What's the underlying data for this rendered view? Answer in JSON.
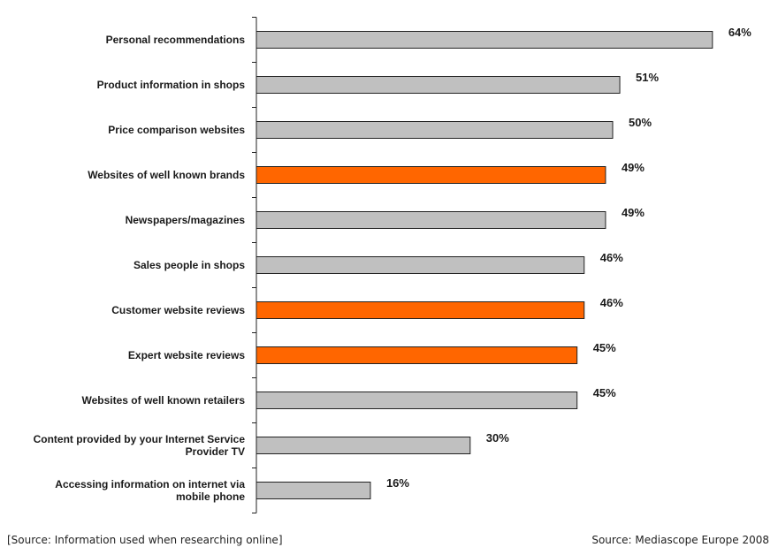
{
  "chart_data": {
    "type": "bar",
    "orientation": "horizontal",
    "categories": [
      [
        "Personal recommendations"
      ],
      [
        "Product information in shops"
      ],
      [
        "Price comparison websites"
      ],
      [
        "Websites of well known brands"
      ],
      [
        "Newspapers/magazines"
      ],
      [
        "Sales people in shops"
      ],
      [
        "Customer website reviews"
      ],
      [
        "Expert website reviews"
      ],
      [
        "Websites of well known retailers"
      ],
      [
        "Content provided by your Internet Service",
        "Provider TV"
      ],
      [
        "Accessing information on internet via",
        "mobile phone"
      ]
    ],
    "values": [
      64,
      51,
      50,
      49,
      49,
      46,
      46,
      45,
      45,
      30,
      16
    ],
    "value_labels": [
      "64%",
      "51%",
      "50%",
      "49%",
      "49%",
      "46%",
      "46%",
      "45%",
      "45%",
      "30%",
      "16%"
    ],
    "highlighted": [
      false,
      false,
      false,
      true,
      false,
      false,
      true,
      true,
      false,
      false,
      false
    ],
    "xlim": [
      0,
      65.5
    ],
    "grid": false,
    "colors": {
      "default_bar": "#c0c0c0",
      "highlight_bar": "#ff6600",
      "bar_outline": "#222222",
      "axis": "#222222"
    }
  },
  "footer": {
    "left": "[Source: Information used when researching online]",
    "right": "Source: Mediascope Europe 2008"
  }
}
